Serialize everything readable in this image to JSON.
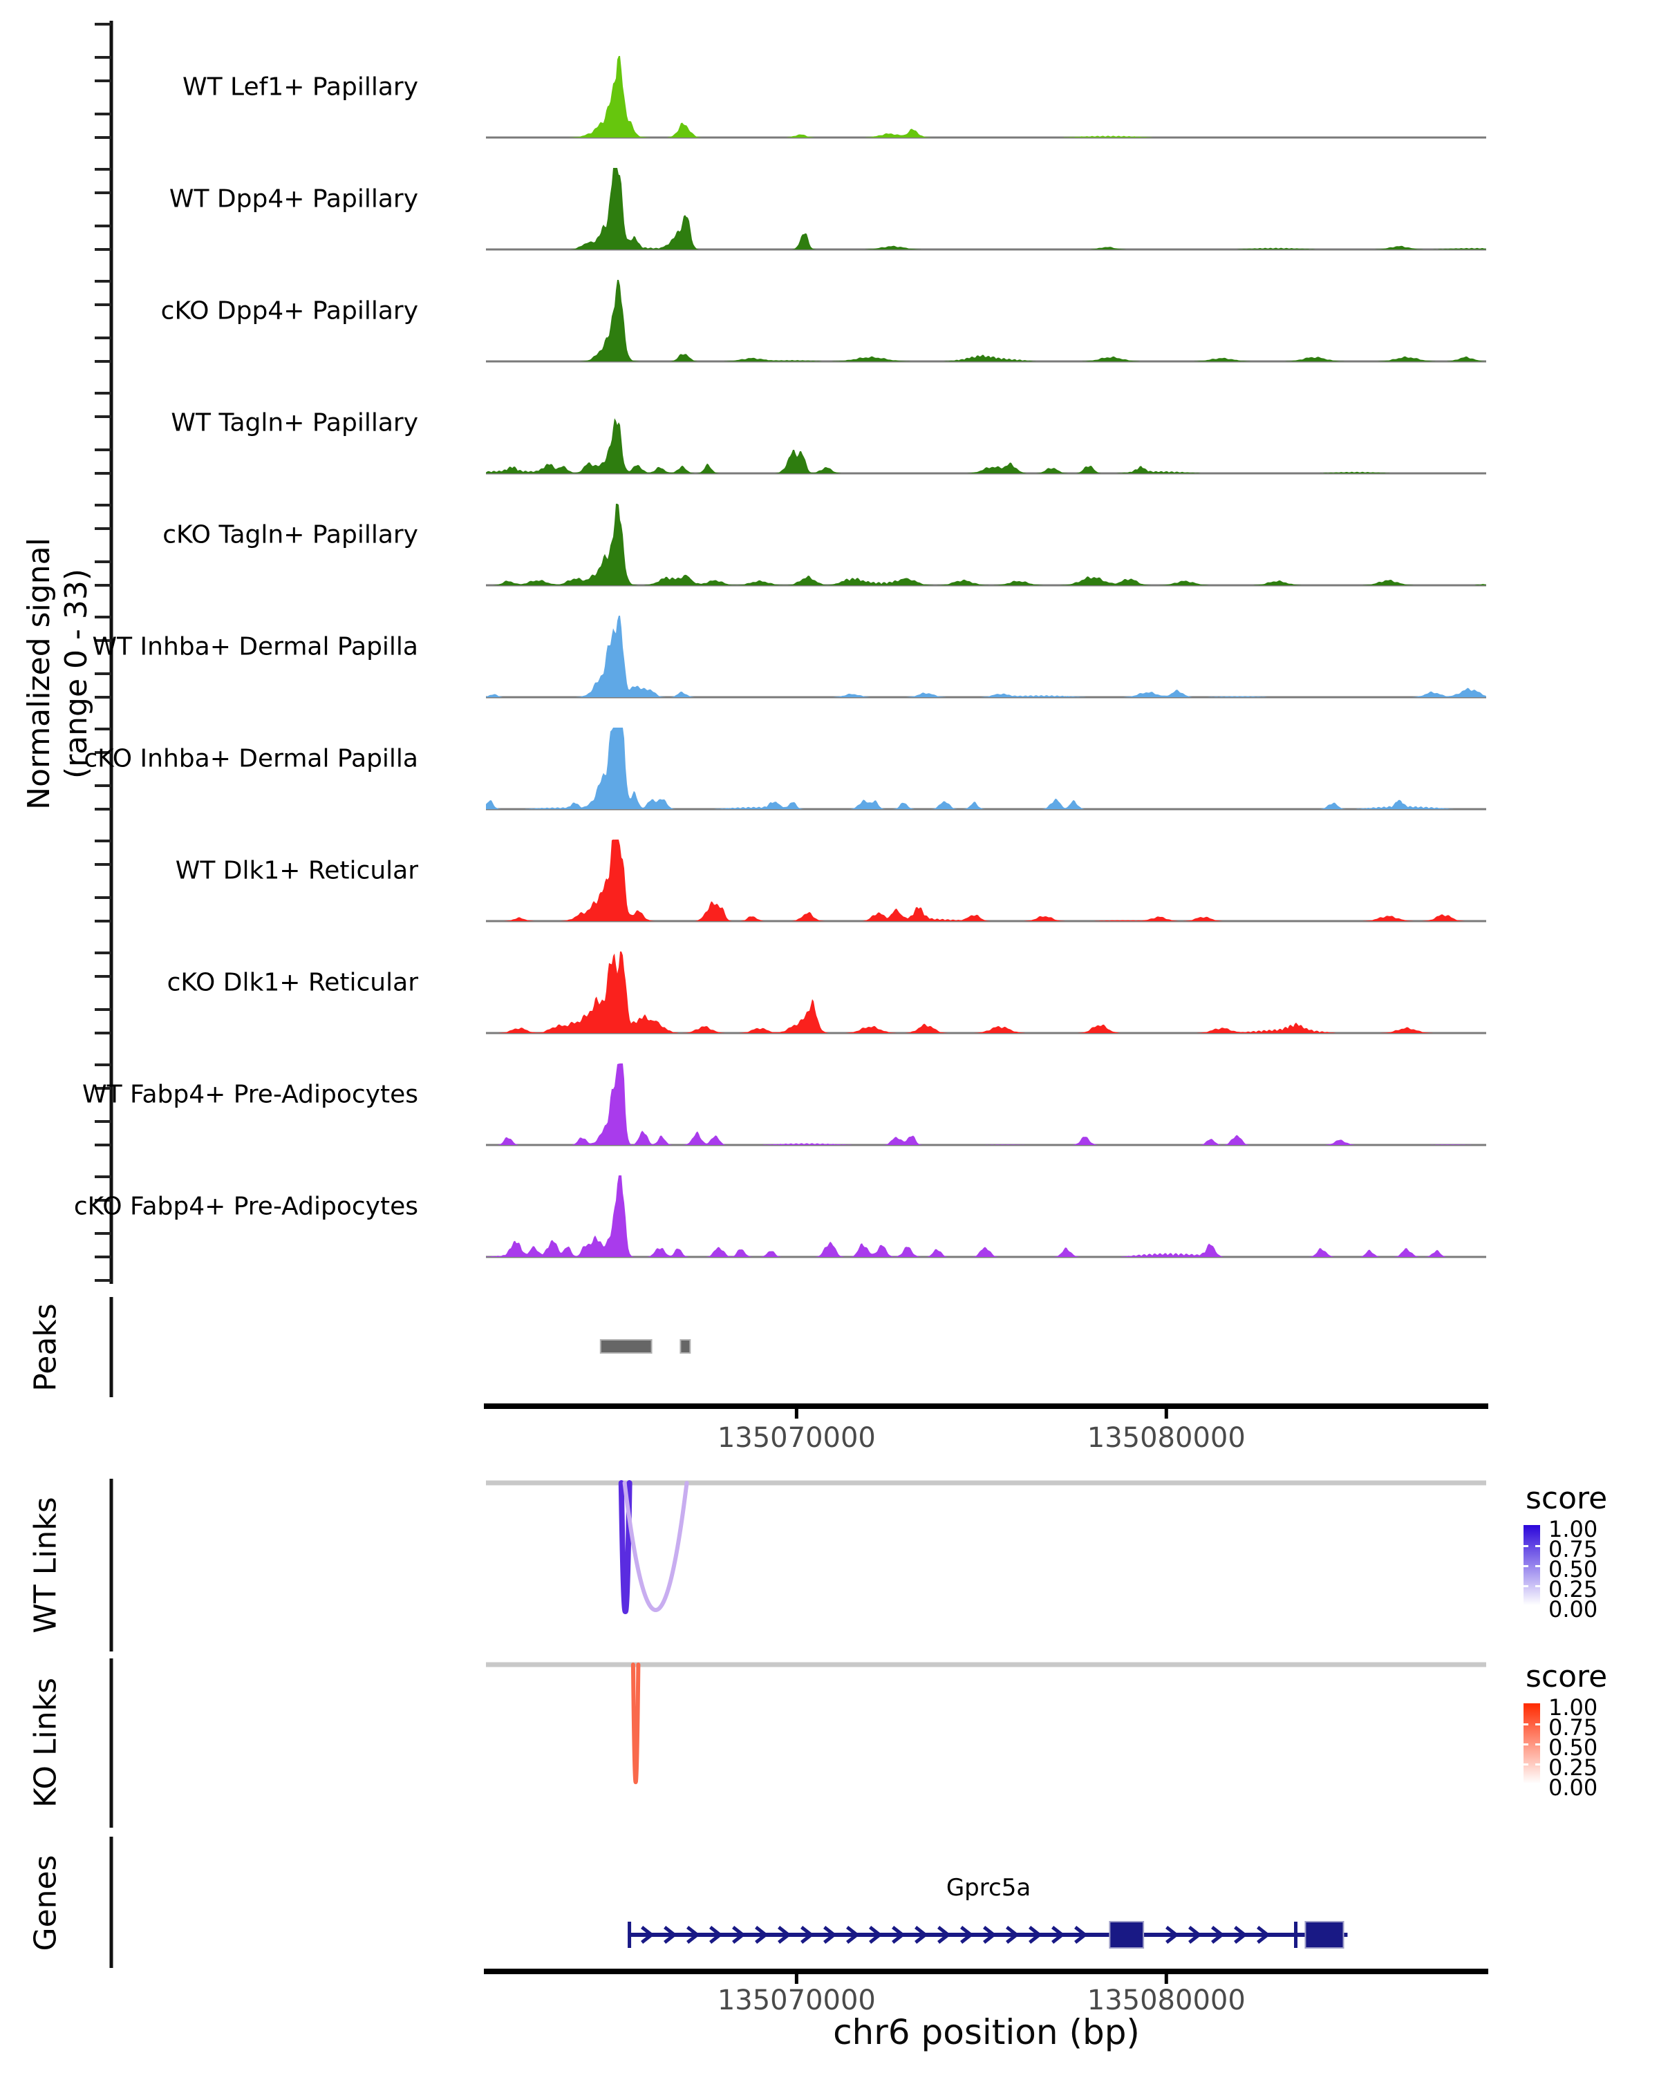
{
  "chart_data": {
    "type": "area",
    "title": "",
    "region": {
      "chrom": "chr6",
      "start": 135061600,
      "end": 135088650
    },
    "x_axis": {
      "label": "chr6 position (bp)",
      "ticks": [
        135070000,
        135080000
      ],
      "tick_labels": [
        "135070000",
        "135080000"
      ]
    },
    "y_axis": {
      "label": "Normalized signal",
      "sublabel": "(range 0 - 33)",
      "range": [
        0,
        33
      ]
    },
    "tracks": [
      {
        "label": "WT Lef1+ Papillary",
        "color": "#66C60D",
        "seed": 1,
        "minor": 0.8,
        "peaks": [
          [
            135064950,
            350,
            6
          ],
          [
            135065120,
            200,
            10
          ],
          [
            135065185,
            90,
            20.5
          ],
          [
            135065450,
            120,
            3.5
          ],
          [
            135066950,
            150,
            5.5
          ],
          [
            135070100,
            150,
            1.2
          ],
          [
            135072500,
            250,
            1.5
          ],
          [
            135073150,
            130,
            3
          ]
        ]
      },
      {
        "label": "WT Dpp4+ Papillary",
        "color": "#2E7D0F",
        "seed": 2,
        "minor": 1.0,
        "peaks": [
          [
            135064950,
            250,
            10
          ],
          [
            135065060,
            90,
            20
          ],
          [
            135065210,
            80,
            24
          ],
          [
            135065600,
            100,
            4
          ],
          [
            135064300,
            150,
            2
          ],
          [
            135066650,
            150,
            3
          ],
          [
            135066900,
            120,
            8
          ],
          [
            135067060,
            90,
            9
          ],
          [
            135070200,
            100,
            7
          ],
          [
            135072600,
            300,
            1.3
          ],
          [
            135078400,
            200,
            1
          ],
          [
            135086300,
            250,
            1.3
          ]
        ]
      },
      {
        "label": "cKO Dpp4+ Papillary",
        "color": "#2E7D0F",
        "seed": 3,
        "minor": 1.5,
        "peaks": [
          [
            135064950,
            250,
            8
          ],
          [
            135065100,
            100,
            16
          ],
          [
            135065250,
            90,
            20
          ],
          [
            135066950,
            130,
            3.3
          ],
          [
            135068800,
            300,
            1.3
          ],
          [
            135072000,
            400,
            1.7
          ],
          [
            135075000,
            300,
            1.3
          ],
          [
            135078500,
            300,
            1.7
          ],
          [
            135081500,
            300,
            1.3
          ],
          [
            135084000,
            300,
            1.7
          ],
          [
            135086500,
            300,
            1.7
          ],
          [
            135088100,
            200,
            1.7
          ]
        ]
      },
      {
        "label": "WT Tagln+ Papillary",
        "color": "#2E7D0F",
        "seed": 4,
        "minor": 1.2,
        "peaks": [
          [
            135065000,
            200,
            9
          ],
          [
            135065150,
            90,
            18
          ],
          [
            135062300,
            120,
            1.7
          ],
          [
            135063300,
            150,
            3.3
          ],
          [
            135063700,
            120,
            2.6
          ],
          [
            135064400,
            150,
            4
          ],
          [
            135065700,
            120,
            3.3
          ],
          [
            135066300,
            130,
            2.3
          ],
          [
            135066900,
            120,
            2.6
          ],
          [
            135067600,
            100,
            3.3
          ],
          [
            135069900,
            150,
            8
          ],
          [
            135070150,
            100,
            6
          ],
          [
            135070800,
            150,
            2.3
          ],
          [
            135075300,
            250,
            2.6
          ],
          [
            135075800,
            150,
            3.3
          ],
          [
            135076900,
            150,
            2.3
          ],
          [
            135077900,
            120,
            3.3
          ],
          [
            135079300,
            120,
            2
          ]
        ]
      },
      {
        "label": "cKO Tagln+ Papillary",
        "color": "#2E7D0F",
        "seed": 5,
        "minor": 1.6,
        "peaks": [
          [
            135065050,
            200,
            13
          ],
          [
            135065200,
            90,
            25
          ],
          [
            135064700,
            250,
            5
          ],
          [
            135064000,
            200,
            2.6
          ],
          [
            135063000,
            250,
            2
          ],
          [
            135062200,
            150,
            1.7
          ],
          [
            135066500,
            200,
            2.6
          ],
          [
            135067000,
            150,
            3.3
          ],
          [
            135067800,
            200,
            2
          ],
          [
            135069000,
            250,
            1.7
          ],
          [
            135070300,
            200,
            3.3
          ],
          [
            135071500,
            250,
            2
          ],
          [
            135073000,
            250,
            2.3
          ],
          [
            135074500,
            250,
            2
          ],
          [
            135076000,
            250,
            1.7
          ],
          [
            135078000,
            300,
            3.3
          ],
          [
            135079000,
            200,
            2.6
          ],
          [
            135080500,
            250,
            1.7
          ],
          [
            135083000,
            250,
            1.7
          ],
          [
            135086000,
            250,
            2
          ]
        ]
      },
      {
        "label": "WT Inhba+ Dermal Papilla",
        "color": "#5FA8E6",
        "seed": 6,
        "minor": 1.0,
        "peaks": [
          [
            135064850,
            250,
            10
          ],
          [
            135065050,
            120,
            19
          ],
          [
            135065250,
            90,
            22.5
          ],
          [
            135065650,
            120,
            4.6
          ],
          [
            135066000,
            150,
            3.3
          ],
          [
            135066900,
            120,
            2
          ],
          [
            135061800,
            100,
            1.3
          ],
          [
            135071500,
            200,
            1.3
          ],
          [
            135073500,
            200,
            1.7
          ],
          [
            135075500,
            200,
            1.3
          ],
          [
            135079500,
            250,
            2
          ],
          [
            135080300,
            150,
            2.6
          ],
          [
            135087200,
            200,
            2
          ],
          [
            135088200,
            250,
            3.3
          ]
        ]
      },
      {
        "label": "cKO Inhba+ Dermal Papilla",
        "color": "#5FA8E6",
        "seed": 7,
        "minor": 1.3,
        "peaks": [
          [
            135064900,
            250,
            15
          ],
          [
            135065100,
            120,
            24
          ],
          [
            135065270,
            80,
            31
          ],
          [
            135065600,
            100,
            6
          ],
          [
            135066100,
            120,
            4
          ],
          [
            135066400,
            100,
            4
          ],
          [
            135061700,
            100,
            3.3
          ],
          [
            135064000,
            100,
            2
          ],
          [
            135069400,
            120,
            2.6
          ],
          [
            135069900,
            100,
            2.6
          ],
          [
            135071800,
            120,
            3.3
          ],
          [
            135072100,
            100,
            3.3
          ],
          [
            135072900,
            100,
            2.6
          ],
          [
            135074000,
            120,
            3.3
          ],
          [
            135074800,
            100,
            2.6
          ],
          [
            135077000,
            120,
            4
          ],
          [
            135077500,
            100,
            3.3
          ],
          [
            135084500,
            120,
            2.6
          ],
          [
            135086300,
            100,
            2.6
          ]
        ]
      },
      {
        "label": "WT Dlk1+ Reticular",
        "color": "#FA211D",
        "seed": 8,
        "minor": 1.3,
        "peaks": [
          [
            135064800,
            250,
            12
          ],
          [
            135065050,
            100,
            25
          ],
          [
            135065260,
            85,
            28
          ],
          [
            135064200,
            200,
            2.6
          ],
          [
            135065700,
            150,
            4
          ],
          [
            135062500,
            150,
            1.3
          ],
          [
            135067700,
            150,
            6.6
          ],
          [
            135067950,
            100,
            4.6
          ],
          [
            135068800,
            120,
            2
          ],
          [
            135070300,
            150,
            3.3
          ],
          [
            135072200,
            150,
            3.3
          ],
          [
            135072700,
            120,
            4
          ],
          [
            135073300,
            130,
            4.6
          ],
          [
            135074800,
            150,
            2.6
          ],
          [
            135076700,
            200,
            2
          ],
          [
            135079800,
            200,
            1.7
          ],
          [
            135081000,
            200,
            1.7
          ],
          [
            135086000,
            250,
            2
          ],
          [
            135087500,
            200,
            2.6
          ]
        ]
      },
      {
        "label": "cKO Dlk1+ Reticular",
        "color": "#FA211D",
        "seed": 9,
        "minor": 1.6,
        "peaks": [
          [
            135064700,
            300,
            13
          ],
          [
            135065050,
            110,
            26
          ],
          [
            135065310,
            85,
            28
          ],
          [
            135064000,
            250,
            3.3
          ],
          [
            135065800,
            200,
            5
          ],
          [
            135066200,
            200,
            3.3
          ],
          [
            135062500,
            200,
            2
          ],
          [
            135063500,
            200,
            2.3
          ],
          [
            135067500,
            200,
            2.6
          ],
          [
            135069000,
            200,
            2
          ],
          [
            135070100,
            250,
            4
          ],
          [
            135070420,
            130,
            10
          ],
          [
            135072000,
            250,
            2.6
          ],
          [
            135073500,
            200,
            3.3
          ],
          [
            135075500,
            250,
            2.6
          ],
          [
            135078200,
            200,
            3.3
          ],
          [
            135081500,
            250,
            2
          ],
          [
            135083500,
            200,
            2.3
          ],
          [
            135086500,
            250,
            2
          ]
        ]
      },
      {
        "label": "WT Fabp4+ Pre-Adipocytes",
        "color": "#A93BEC",
        "seed": 10,
        "minor": 0.8,
        "peaks": [
          [
            135065260,
            80,
            31
          ],
          [
            135065100,
            130,
            18
          ],
          [
            135064900,
            200,
            6.6
          ],
          [
            135065850,
            100,
            6
          ],
          [
            135066350,
            100,
            3.3
          ],
          [
            135067300,
            120,
            4.6
          ],
          [
            135067800,
            100,
            4
          ],
          [
            135062200,
            100,
            3.3
          ],
          [
            135064200,
            100,
            3.3
          ],
          [
            135072700,
            120,
            3.3
          ],
          [
            135073100,
            100,
            4
          ],
          [
            135077800,
            120,
            3.3
          ],
          [
            135081200,
            100,
            2.6
          ],
          [
            135081900,
            120,
            4
          ],
          [
            135084700,
            150,
            2
          ]
        ]
      },
      {
        "label": "cKO Fabp4+ Pre-Adipocytes",
        "color": "#A93BEC",
        "seed": 11,
        "minor": 1.6,
        "peaks": [
          [
            135065260,
            85,
            30
          ],
          [
            135065100,
            150,
            16
          ],
          [
            135064600,
            120,
            8
          ],
          [
            135064300,
            100,
            5
          ],
          [
            135063400,
            120,
            6.6
          ],
          [
            135063800,
            100,
            4
          ],
          [
            135062400,
            120,
            6
          ],
          [
            135062900,
            100,
            3.3
          ],
          [
            135066300,
            120,
            4
          ],
          [
            135066800,
            100,
            3.3
          ],
          [
            135067900,
            120,
            4
          ],
          [
            135068500,
            100,
            3.3
          ],
          [
            135069300,
            100,
            2.6
          ],
          [
            135070900,
            130,
            6
          ],
          [
            135071800,
            120,
            5.3
          ],
          [
            135072300,
            120,
            4.6
          ],
          [
            135073000,
            120,
            4
          ],
          [
            135073800,
            100,
            3.3
          ],
          [
            135075100,
            120,
            4
          ],
          [
            135077300,
            120,
            3.3
          ],
          [
            135081200,
            120,
            4.6
          ],
          [
            135084200,
            120,
            3.3
          ],
          [
            135085500,
            100,
            2.6
          ],
          [
            135086500,
            120,
            3.3
          ],
          [
            135087300,
            100,
            2.6
          ]
        ]
      }
    ],
    "peaks_track": {
      "label": "Peaks",
      "color": "#666666",
      "intervals": [
        [
          135064700,
          135066080
        ],
        [
          135066860,
          135067120
        ]
      ]
    },
    "wt_links": {
      "label": "WT Links",
      "legend_title": "score",
      "legend_ticks": [
        "1.00",
        "0.75",
        "0.50",
        "0.25",
        "0.00"
      ],
      "gradient_top": "#2B06DA",
      "links": [
        {
          "start": 135065260,
          "end": 135065480,
          "score": 0.85,
          "color": "#5A2CE0",
          "depth": 186,
          "width": 8
        },
        {
          "start": 135065350,
          "end": 135067030,
          "score": 0.3,
          "color": "#C8ADF0",
          "depth": 184,
          "width": 6
        }
      ]
    },
    "ko_links": {
      "label": "KO Links",
      "legend_title": "score",
      "legend_ticks": [
        "1.00",
        "0.75",
        "0.50",
        "0.25",
        "0.00"
      ],
      "gradient_top": "#FF2A00",
      "links": [
        {
          "start": 135065580,
          "end": 135065720,
          "score": 0.6,
          "color": "#F9694B",
          "depth": 170,
          "width": 6
        }
      ]
    },
    "genes_track": {
      "label": "Genes",
      "items": [
        {
          "name": "Gprc5a",
          "strand": "+",
          "color": "#191985",
          "start": 135065480,
          "end": 135084900,
          "exons": [
            [
              135078470,
              135079380
            ],
            [
              135083760,
              135084790
            ]
          ],
          "bars": [
            135065480,
            135083500
          ]
        }
      ]
    }
  }
}
